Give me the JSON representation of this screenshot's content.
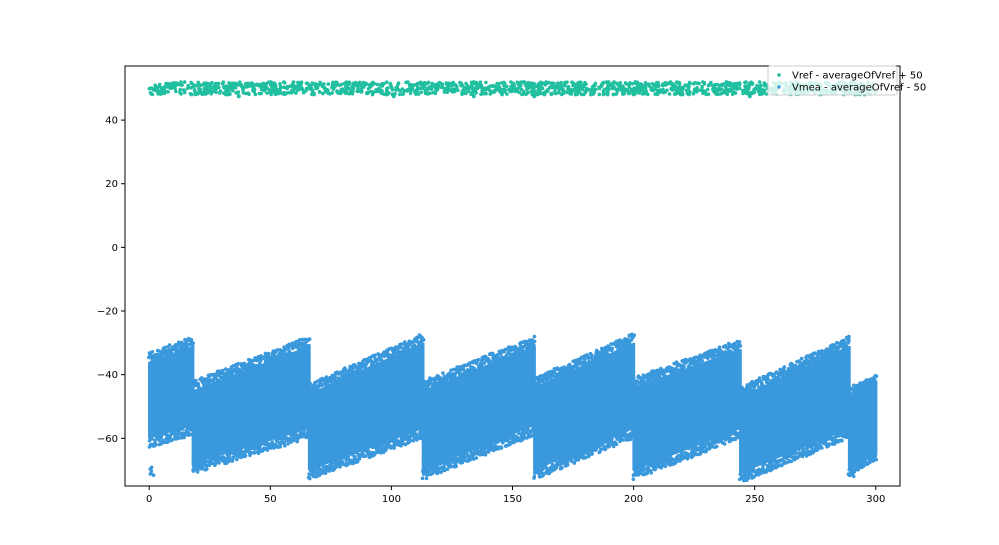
{
  "chart_data": {
    "type": "scatter",
    "title": "",
    "xlabel": "",
    "ylabel": "",
    "xlim": [
      -10,
      310
    ],
    "ylim": [
      -75,
      57
    ],
    "x_ticks": [
      0,
      50,
      100,
      150,
      200,
      250,
      300
    ],
    "y_ticks": [
      -60,
      -40,
      -20,
      0,
      20,
      40
    ],
    "grid": false,
    "legend_position": "upper right",
    "series": [
      {
        "name": "Vref - averageOfVref + 50",
        "color": "#20bfa0",
        "band": {
          "x_range": [
            0,
            300
          ],
          "y_min": 48,
          "y_max": 52
        },
        "outliers": [
          [
            37,
            47.5
          ],
          [
            101,
            47.5
          ],
          [
            134,
            47.5
          ],
          [
            159,
            47.5
          ],
          [
            248,
            47.5
          ]
        ]
      },
      {
        "name": "Vmea - averageOfVref - 50",
        "color": "#3a98dc",
        "segments": [
          {
            "x": [
              0,
              18
            ],
            "top": [
              -36,
              -31
            ],
            "bottom": [
              -60,
              -56
            ],
            "spread": 5,
            "tail_bottom": -72
          },
          {
            "x": [
              18,
              66
            ],
            "top": [
              -45,
              -31
            ],
            "bottom": [
              -68,
              -57
            ],
            "spread": 5,
            "tail_bottom": -70
          },
          {
            "x": [
              66,
              113
            ],
            "top": [
              -46,
              -30
            ],
            "bottom": [
              -70,
              -57
            ],
            "spread": 5,
            "tail_bottom": -70
          },
          {
            "x": [
              113,
              159
            ],
            "top": [
              -45,
              -31
            ],
            "bottom": [
              -70,
              -56
            ],
            "spread": 5,
            "tail_bottom": -70
          },
          {
            "x": [
              159,
              200
            ],
            "top": [
              -44,
              -30
            ],
            "bottom": [
              -70,
              -57
            ],
            "spread": 5,
            "tail_bottom": -70
          },
          {
            "x": [
              200,
              244
            ],
            "top": [
              -44,
              -32
            ],
            "bottom": [
              -70,
              -57
            ],
            "spread": 5,
            "tail_bottom": -72
          },
          {
            "x": [
              244,
              289
            ],
            "top": [
              -47,
              -31
            ],
            "bottom": [
              -71,
              -57
            ],
            "spread": 5,
            "tail_bottom": -71
          },
          {
            "x": [
              289,
              300
            ],
            "top": [
              -46,
              -42
            ],
            "bottom": [
              -70,
              -65
            ],
            "spread": 3,
            "tail_bottom": -72
          }
        ]
      }
    ]
  }
}
